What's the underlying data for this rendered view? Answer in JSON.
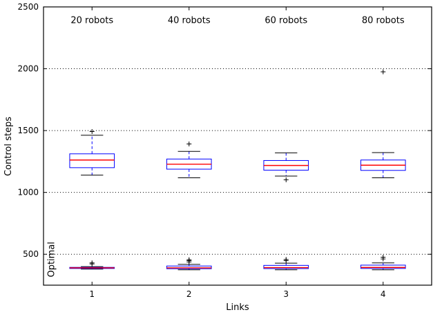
{
  "chart_data": {
    "type": "boxplot",
    "title": "",
    "xlabel": "Links",
    "ylabel": "Control steps",
    "xlim": [
      0.5,
      4.5
    ],
    "ylim": [
      250,
      2500
    ],
    "xticks": [
      1,
      2,
      3,
      4
    ],
    "yticks": [
      500,
      1000,
      1500,
      2000,
      2500
    ],
    "grid": "horizontal-dotted",
    "legend_position": "none",
    "box_width": 0.46,
    "colors": {
      "box": "#0000ff",
      "median": "#ff0000",
      "whisker": "#0000ff",
      "cap": "#000000",
      "flier": "#000000",
      "grid": "#000000",
      "frame": "#000000",
      "background": "#ffffff"
    },
    "annotations": [
      {
        "text": "20 robots",
        "x": 1,
        "y": 2390,
        "rotation": 0
      },
      {
        "text": "40 robots",
        "x": 2,
        "y": 2390,
        "rotation": 0
      },
      {
        "text": "60 robots",
        "x": 3,
        "y": 2390,
        "rotation": 0
      },
      {
        "text": "80 robots",
        "x": 4,
        "y": 2390,
        "rotation": 0
      },
      {
        "text": "Optimal",
        "x": 0.61,
        "y": 480,
        "rotation": -90
      }
    ],
    "series": [
      {
        "name": "control-steps",
        "boxes": [
          {
            "x": 1,
            "whisker_low": 1140,
            "q1": 1200,
            "median": 1262,
            "q3": 1312,
            "whisker_high": 1462,
            "fliers": [
              1492
            ]
          },
          {
            "x": 2,
            "whisker_low": 1118,
            "q1": 1188,
            "median": 1228,
            "q3": 1270,
            "whisker_high": 1332,
            "fliers": [
              1392
            ]
          },
          {
            "x": 3,
            "whisker_low": 1132,
            "q1": 1180,
            "median": 1218,
            "q3": 1258,
            "whisker_high": 1320,
            "fliers": [
              1102
            ]
          },
          {
            "x": 4,
            "whisker_low": 1118,
            "q1": 1178,
            "median": 1220,
            "q3": 1262,
            "whisker_high": 1322,
            "fliers": [
              1975
            ]
          }
        ]
      },
      {
        "name": "optimal",
        "boxes": [
          {
            "x": 1,
            "whisker_low": 380,
            "q1": 385,
            "median": 390,
            "q3": 394,
            "whisker_high": 400,
            "fliers": [
              422,
              430
            ]
          },
          {
            "x": 2,
            "whisker_low": 374,
            "q1": 383,
            "median": 390,
            "q3": 405,
            "whisker_high": 418,
            "fliers": [
              438,
              448,
              456
            ]
          },
          {
            "x": 3,
            "whisker_low": 374,
            "q1": 384,
            "median": 392,
            "q3": 410,
            "whisker_high": 428,
            "fliers": [
              448,
              458
            ]
          },
          {
            "x": 4,
            "whisker_low": 374,
            "q1": 385,
            "median": 393,
            "q3": 412,
            "whisker_high": 430,
            "fliers": [
              462,
              476
            ]
          }
        ]
      }
    ]
  }
}
